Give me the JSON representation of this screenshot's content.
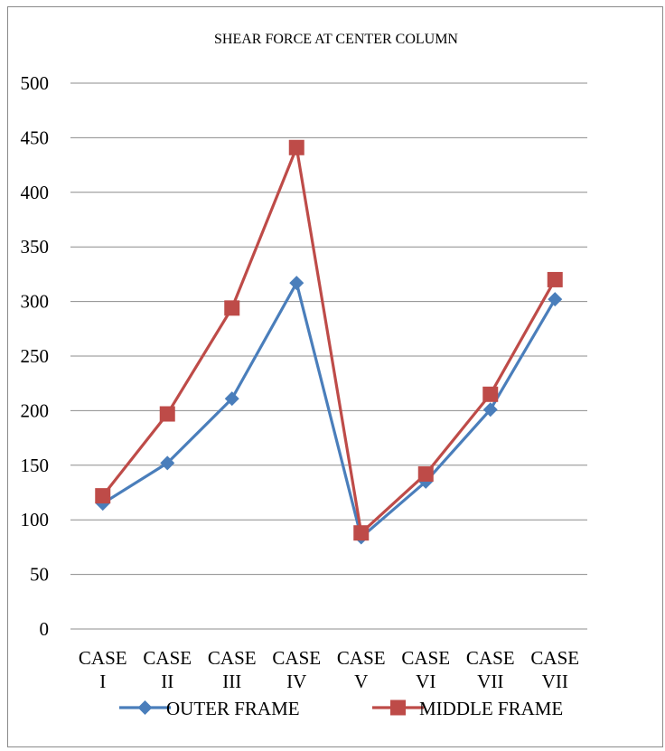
{
  "chart_data": {
    "type": "line",
    "title": "SHEAR FORCE AT CENTER COLUMN",
    "categories": [
      [
        "CASE",
        "I"
      ],
      [
        "CASE",
        "II"
      ],
      [
        "CASE",
        "III"
      ],
      [
        "CASE",
        "IV"
      ],
      [
        "CASE",
        "V"
      ],
      [
        "CASE",
        "VI"
      ],
      [
        "CASE",
        "VII"
      ],
      [
        "CASE",
        "VII"
      ]
    ],
    "series": [
      {
        "name": "OUTER FRAME",
        "color": "#4A7EBB",
        "marker": "diamond",
        "values": [
          115,
          152,
          211,
          317,
          84,
          135,
          201,
          302
        ]
      },
      {
        "name": "MIDDLE FRAME",
        "color": "#BE4B48",
        "marker": "square",
        "values": [
          122,
          197,
          294,
          441,
          88,
          142,
          215,
          320
        ]
      }
    ],
    "ylim": [
      0,
      500
    ],
    "yticks": [
      0,
      50,
      100,
      150,
      200,
      250,
      300,
      350,
      400,
      450,
      500
    ],
    "grid": true,
    "legend": "bottom"
  }
}
